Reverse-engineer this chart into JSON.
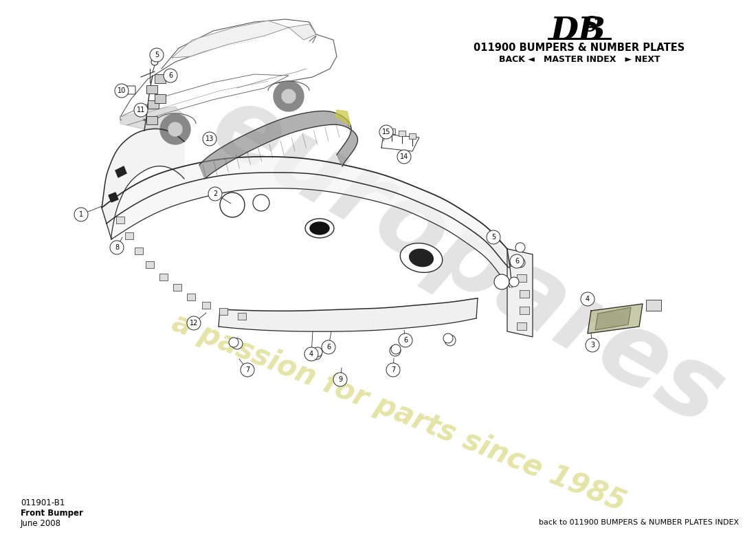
{
  "subtitle": "011900 BUMPERS & NUMBER PLATES",
  "nav": "BACK ◄   MASTER INDEX   ► NEXT",
  "bottom_left_code": "011901-B1",
  "bottom_left_name": "Front Bumper",
  "bottom_left_date": "June 2008",
  "bottom_right": "back to 011900 BUMPERS & NUMBER PLATES INDEX",
  "background_color": "#ffffff",
  "line_color": "#2a2a2a",
  "watermark_gray": "#cccccc",
  "watermark_yellow": "#dede90"
}
